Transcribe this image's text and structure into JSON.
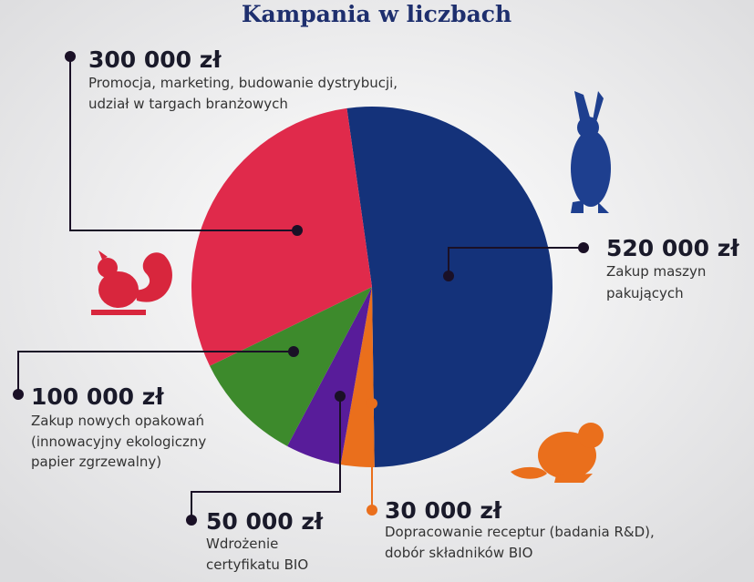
{
  "chart_data": {
    "type": "pie",
    "title": "Kampania w liczbach",
    "categories": [
      "520 000 zł",
      "30 000 zł",
      "50 000 zł",
      "100 000 zł",
      "300 000 zł"
    ],
    "values": [
      520000,
      30000,
      50000,
      100000,
      300000
    ],
    "colors": [
      "#14327a",
      "#ea6f1c",
      "#581c9a",
      "#3d8a2c",
      "#e02a4b"
    ],
    "descriptions": [
      [
        "Zakup maszyn",
        "pakujących"
      ],
      [
        "Dopracowanie receptur (badania R&D),",
        "dobór składników BIO"
      ],
      [
        "Wdrożenie",
        "certyfikatu BIO"
      ],
      [
        "Zakup nowych opakowań",
        "(innowacyjny ekologiczny",
        "papier zgrzewalny)"
      ],
      [
        "Promocja, marketing, budowanie dystrybucji,",
        "udział w targach branżowych"
      ]
    ]
  }
}
